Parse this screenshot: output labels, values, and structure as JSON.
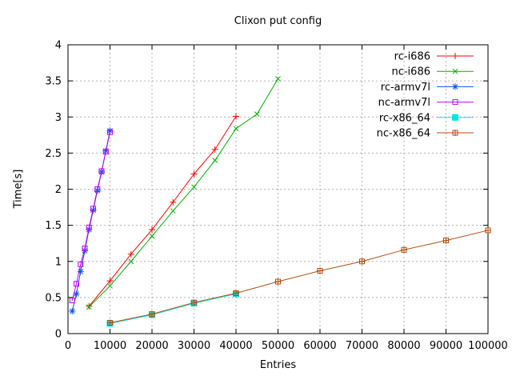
{
  "figure": {
    "background": "#ffffff",
    "border_color": "#000000",
    "text_color": "#000000"
  },
  "chart_data": {
    "type": "line",
    "title": "Clixon put config",
    "xlabel": "Entries",
    "ylabel": "Time[s]",
    "xlim": [
      0,
      100000
    ],
    "ylim": [
      0,
      4
    ],
    "xticks": [
      0,
      10000,
      20000,
      30000,
      40000,
      50000,
      60000,
      70000,
      80000,
      90000,
      100000
    ],
    "yticks": [
      0,
      0.5,
      1,
      1.5,
      2,
      2.5,
      3,
      3.5,
      4
    ],
    "grid": true,
    "grid_color": "#b0b0b0",
    "legend_position": "top-right-inside",
    "series": [
      {
        "name": "rc-i686",
        "color": "#ff0000",
        "marker": "plus",
        "x": [
          5000,
          10000,
          15000,
          20000,
          25000,
          30000,
          35000,
          40000
        ],
        "y": [
          0.38,
          0.73,
          1.1,
          1.44,
          1.82,
          2.21,
          2.55,
          3.01
        ]
      },
      {
        "name": "nc-i686",
        "color": "#00b000",
        "marker": "cross",
        "x": [
          5000,
          10000,
          15000,
          20000,
          25000,
          30000,
          35000,
          40000,
          45000,
          50000
        ],
        "y": [
          0.37,
          0.66,
          1.0,
          1.35,
          1.7,
          2.03,
          2.4,
          2.84,
          3.04,
          3.53
        ]
      },
      {
        "name": "rc-armv7l",
        "color": "#0a55e8",
        "marker": "asterisk",
        "x": [
          1000,
          2000,
          3000,
          4000,
          5000,
          6000,
          7000,
          8000,
          9000,
          10000
        ],
        "y": [
          0.31,
          0.55,
          0.86,
          1.15,
          1.44,
          1.71,
          1.98,
          2.24,
          2.53,
          2.81
        ]
      },
      {
        "name": "nc-armv7l",
        "color": "#c000ff",
        "marker": "open-square",
        "x": [
          1000,
          2000,
          3000,
          4000,
          5000,
          6000,
          7000,
          8000,
          9000,
          10000
        ],
        "y": [
          0.46,
          0.69,
          0.96,
          1.18,
          1.47,
          1.73,
          2.0,
          2.25,
          2.52,
          2.79
        ]
      },
      {
        "name": "rc-x86_64",
        "color": "#00e6e6",
        "marker": "filled-square",
        "x": [
          10000,
          20000,
          30000,
          40000
        ],
        "y": [
          0.14,
          0.26,
          0.42,
          0.55
        ]
      },
      {
        "name": "nc-x86_64",
        "color": "#b34d0e",
        "marker": "boxed-plus",
        "x": [
          10000,
          20000,
          30000,
          40000,
          50000,
          60000,
          70000,
          80000,
          90000,
          100000
        ],
        "y": [
          0.15,
          0.27,
          0.43,
          0.56,
          0.72,
          0.87,
          1.0,
          1.16,
          1.29,
          1.43
        ]
      }
    ]
  }
}
